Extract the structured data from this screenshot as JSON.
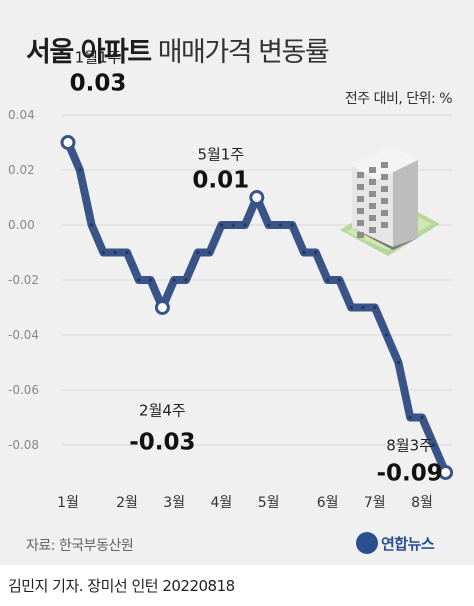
{
  "title_bold": "서울 아파트",
  "title_light": "매매가격 변동률",
  "unit_note": "전주 대비, 단위: %",
  "source": "자료: 한국부동산원",
  "logo_text": "연합뉴스",
  "byline": "김민지 기자. 장미선 인턴  20220818",
  "colors": {
    "line": "#3a5488",
    "background": "#f0f0f0",
    "dot": "#1f3566"
  },
  "chart_data": {
    "type": "line",
    "ylim": [
      -0.09,
      0.04
    ],
    "yticks": [
      "0.04",
      "0.02",
      "0.00",
      "-0.02",
      "-0.04",
      "-0.06",
      "-0.08"
    ],
    "ytick_values": [
      0.04,
      0.02,
      0.0,
      -0.02,
      -0.04,
      -0.06,
      -0.08
    ],
    "x_labels": [
      "1월",
      "2월",
      "3월",
      "4월",
      "5월",
      "6월",
      "7월",
      "8월"
    ],
    "x_label_weeks": [
      0,
      5,
      9,
      13,
      17,
      22,
      26,
      30
    ],
    "weeks": [
      0,
      1,
      2,
      3,
      4,
      5,
      6,
      7,
      8,
      9,
      10,
      11,
      12,
      13,
      14,
      15,
      16,
      17,
      18,
      19,
      20,
      21,
      22,
      23,
      24,
      25,
      26,
      27,
      28,
      29,
      30,
      31,
      32
    ],
    "values": [
      0.03,
      0.02,
      0.0,
      -0.01,
      -0.01,
      -0.01,
      -0.02,
      -0.02,
      -0.03,
      -0.02,
      -0.02,
      -0.01,
      -0.01,
      0.0,
      0.0,
      0.0,
      0.01,
      0.0,
      0.0,
      0.0,
      -0.01,
      -0.01,
      -0.02,
      -0.02,
      -0.03,
      -0.03,
      -0.03,
      -0.04,
      -0.05,
      -0.07,
      -0.07,
      -0.08,
      -0.09
    ],
    "annotations": [
      {
        "week": 0,
        "date": "1월1주",
        "value": "0.03"
      },
      {
        "week": 8,
        "date": "2월4주",
        "value": "-0.03"
      },
      {
        "week": 16,
        "date": "5월1주",
        "value": "0.01"
      },
      {
        "week": 32,
        "date": "8월3주",
        "value": "-0.09"
      }
    ],
    "grid": true
  }
}
